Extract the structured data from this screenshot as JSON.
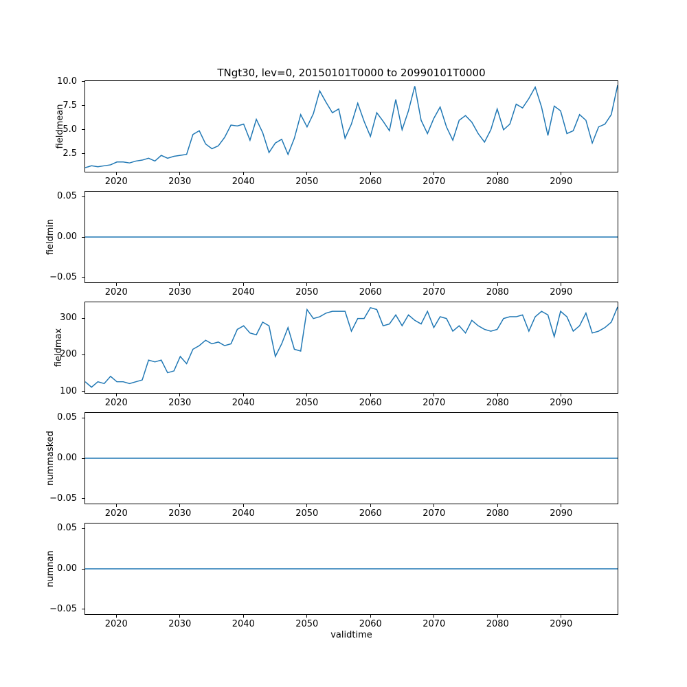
{
  "figure": {
    "title": "TNgt30, lev=0, 20150101T0000 to 20990101T0000",
    "xlabel": "validtime",
    "line_color": "#1f77b4",
    "spine_color": "#000000",
    "background_color": "#ffffff"
  },
  "chart_data": {
    "type": "line",
    "title": "TNgt30, lev=0, 20150101T0000 to 20990101T0000",
    "xlabel": "validtime",
    "legend": "none",
    "grid": false,
    "line_color": "#1f77b4",
    "x": [
      2015,
      2016,
      2017,
      2018,
      2019,
      2020,
      2021,
      2022,
      2023,
      2024,
      2025,
      2026,
      2027,
      2028,
      2029,
      2030,
      2031,
      2032,
      2033,
      2034,
      2035,
      2036,
      2037,
      2038,
      2039,
      2040,
      2041,
      2042,
      2043,
      2044,
      2045,
      2046,
      2047,
      2048,
      2049,
      2050,
      2051,
      2052,
      2053,
      2054,
      2055,
      2056,
      2057,
      2058,
      2059,
      2060,
      2061,
      2062,
      2063,
      2064,
      2065,
      2066,
      2067,
      2068,
      2069,
      2070,
      2071,
      2072,
      2073,
      2074,
      2075,
      2076,
      2077,
      2078,
      2079,
      2080,
      2081,
      2082,
      2083,
      2084,
      2085,
      2086,
      2087,
      2088,
      2089,
      2090,
      2091,
      2092,
      2093,
      2094,
      2095,
      2096,
      2097,
      2098,
      2099
    ],
    "xlim": [
      2015,
      2099
    ],
    "xticks": [
      2020,
      2030,
      2040,
      2050,
      2060,
      2070,
      2080,
      2090
    ],
    "xtick_labels": [
      "2020",
      "2030",
      "2040",
      "2050",
      "2060",
      "2070",
      "2080",
      "2090"
    ],
    "subplots": [
      {
        "name": "fieldmean",
        "ylabel": "fieldmean",
        "ylim": [
          0.57,
          10.14
        ],
        "yticks": [
          2.5,
          5.0,
          7.5,
          10.0
        ],
        "ytick_labels": [
          "2.5",
          "5.0",
          "7.5",
          "10.0"
        ],
        "values": [
          1.0,
          1.2,
          1.1,
          1.2,
          1.3,
          1.6,
          1.6,
          1.5,
          1.7,
          1.8,
          2.0,
          1.7,
          2.3,
          2.0,
          2.2,
          2.3,
          2.4,
          4.5,
          4.9,
          3.5,
          3.0,
          3.3,
          4.2,
          5.5,
          5.4,
          5.6,
          3.9,
          6.1,
          4.7,
          2.6,
          3.6,
          4.0,
          2.4,
          4.1,
          6.6,
          5.3,
          6.7,
          9.1,
          7.9,
          6.8,
          7.2,
          4.1,
          5.6,
          7.8,
          5.9,
          4.3,
          6.8,
          5.9,
          4.9,
          8.2,
          5.0,
          7.0,
          9.6,
          6.0,
          4.6,
          6.2,
          7.4,
          5.3,
          3.9,
          6.0,
          6.5,
          5.8,
          4.6,
          3.7,
          5.0,
          7.2,
          5.0,
          5.6,
          7.7,
          7.3,
          8.3,
          9.5,
          7.4,
          4.4,
          7.5,
          7.0,
          4.6,
          4.9,
          6.6,
          6.0,
          3.6,
          5.3,
          5.6,
          6.6,
          9.7
        ]
      },
      {
        "name": "fieldmin",
        "ylabel": "fieldmin",
        "ylim": [
          -0.057,
          0.057
        ],
        "yticks": [
          -0.05,
          0.0,
          0.05
        ],
        "ytick_labels": [
          "−0.05",
          "0.00",
          "0.05"
        ],
        "values": [
          0,
          0,
          0,
          0,
          0,
          0,
          0,
          0,
          0,
          0,
          0,
          0,
          0,
          0,
          0,
          0,
          0,
          0,
          0,
          0,
          0,
          0,
          0,
          0,
          0,
          0,
          0,
          0,
          0,
          0,
          0,
          0,
          0,
          0,
          0,
          0,
          0,
          0,
          0,
          0,
          0,
          0,
          0,
          0,
          0,
          0,
          0,
          0,
          0,
          0,
          0,
          0,
          0,
          0,
          0,
          0,
          0,
          0,
          0,
          0,
          0,
          0,
          0,
          0,
          0,
          0,
          0,
          0,
          0,
          0,
          0,
          0,
          0,
          0,
          0,
          0,
          0,
          0,
          0,
          0,
          0,
          0,
          0,
          0,
          0
        ]
      },
      {
        "name": "fieldmax",
        "ylabel": "fieldmax",
        "ylim": [
          94,
          345
        ],
        "yticks": [
          100,
          200,
          300
        ],
        "ytick_labels": [
          "100",
          "200",
          "300"
        ],
        "values": [
          125,
          110,
          125,
          120,
          140,
          125,
          125,
          120,
          125,
          130,
          185,
          180,
          185,
          150,
          155,
          195,
          175,
          215,
          225,
          240,
          230,
          235,
          225,
          230,
          270,
          280,
          260,
          255,
          290,
          280,
          195,
          230,
          275,
          215,
          210,
          325,
          300,
          305,
          315,
          320,
          320,
          320,
          265,
          300,
          300,
          330,
          325,
          280,
          285,
          310,
          280,
          310,
          295,
          285,
          320,
          275,
          305,
          300,
          265,
          280,
          260,
          295,
          280,
          270,
          265,
          270,
          300,
          305,
          305,
          310,
          265,
          305,
          320,
          310,
          250,
          320,
          305,
          265,
          280,
          315,
          260,
          265,
          275,
          290,
          332
        ]
      },
      {
        "name": "nummasked",
        "ylabel": "nummasked",
        "ylim": [
          -0.057,
          0.057
        ],
        "yticks": [
          -0.05,
          0.0,
          0.05
        ],
        "ytick_labels": [
          "−0.05",
          "0.00",
          "0.05"
        ],
        "values": [
          0,
          0,
          0,
          0,
          0,
          0,
          0,
          0,
          0,
          0,
          0,
          0,
          0,
          0,
          0,
          0,
          0,
          0,
          0,
          0,
          0,
          0,
          0,
          0,
          0,
          0,
          0,
          0,
          0,
          0,
          0,
          0,
          0,
          0,
          0,
          0,
          0,
          0,
          0,
          0,
          0,
          0,
          0,
          0,
          0,
          0,
          0,
          0,
          0,
          0,
          0,
          0,
          0,
          0,
          0,
          0,
          0,
          0,
          0,
          0,
          0,
          0,
          0,
          0,
          0,
          0,
          0,
          0,
          0,
          0,
          0,
          0,
          0,
          0,
          0,
          0,
          0,
          0,
          0,
          0,
          0,
          0,
          0,
          0,
          0
        ]
      },
      {
        "name": "numnan",
        "ylabel": "numnan",
        "ylim": [
          -0.057,
          0.057
        ],
        "yticks": [
          -0.05,
          0.0,
          0.05
        ],
        "ytick_labels": [
          "−0.05",
          "0.00",
          "0.05"
        ],
        "values": [
          0,
          0,
          0,
          0,
          0,
          0,
          0,
          0,
          0,
          0,
          0,
          0,
          0,
          0,
          0,
          0,
          0,
          0,
          0,
          0,
          0,
          0,
          0,
          0,
          0,
          0,
          0,
          0,
          0,
          0,
          0,
          0,
          0,
          0,
          0,
          0,
          0,
          0,
          0,
          0,
          0,
          0,
          0,
          0,
          0,
          0,
          0,
          0,
          0,
          0,
          0,
          0,
          0,
          0,
          0,
          0,
          0,
          0,
          0,
          0,
          0,
          0,
          0,
          0,
          0,
          0,
          0,
          0,
          0,
          0,
          0,
          0,
          0,
          0,
          0,
          0,
          0,
          0,
          0,
          0,
          0,
          0,
          0,
          0,
          0
        ]
      }
    ]
  }
}
